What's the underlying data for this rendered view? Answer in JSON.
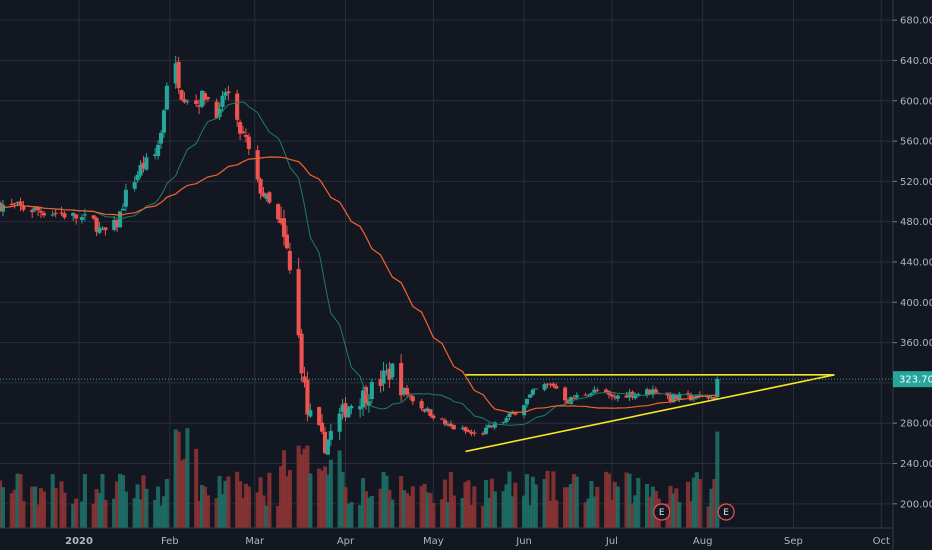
{
  "chart_data": {
    "type": "candlestick",
    "title": "",
    "xlabel": "",
    "ylabel": "",
    "x_range": [
      "2019-12-05",
      "2020-10-05"
    ],
    "ylim": [
      176,
      700
    ],
    "y_ticks": [
      "200.00",
      "240.00",
      "280.00",
      "320.00",
      "360.00",
      "400.00",
      "440.00",
      "480.00",
      "520.00",
      "560.00",
      "600.00",
      "640.00",
      "680.00"
    ],
    "x_ticks": [
      {
        "label": "2020",
        "date": "2020-01-01",
        "bold": true
      },
      {
        "label": "Feb",
        "date": "2020-02-01"
      },
      {
        "label": "Mar",
        "date": "2020-03-01"
      },
      {
        "label": "Apr",
        "date": "2020-04-01"
      },
      {
        "label": "May",
        "date": "2020-05-01"
      },
      {
        "label": "Jun",
        "date": "2020-06-01"
      },
      {
        "label": "Jul",
        "date": "2020-07-01"
      },
      {
        "label": "Aug",
        "date": "2020-08-01"
      },
      {
        "label": "Sep",
        "date": "2020-09-01"
      },
      {
        "label": "Oct",
        "date": "2020-10-01"
      }
    ],
    "last_price": "323.70",
    "last_price_value": 323.7,
    "grid": true,
    "colors": {
      "background": "#131722",
      "grid": "#2a2e39",
      "up": "#26a69a",
      "down": "#ef5350",
      "volume_up": "#1f6f66",
      "volume_down": "#8c3434",
      "ma_short": "#1e7f63",
      "ma_long": "#f4622f",
      "trendline": "#f5e625",
      "price_label": "#26a69a",
      "earnings_marker": "#ef5350"
    },
    "series": [
      {
        "kind": "ohlc",
        "anchors": [
          [
            "2019-12-05",
            497
          ],
          [
            "2019-12-16",
            492
          ],
          [
            "2019-12-26",
            488
          ],
          [
            "2020-01-06",
            480
          ],
          [
            "2020-01-09",
            468
          ],
          [
            "2020-01-14",
            478
          ],
          [
            "2020-01-17",
            507
          ],
          [
            "2020-01-22",
            533
          ],
          [
            "2020-01-27",
            546
          ],
          [
            "2020-01-29",
            568
          ],
          [
            "2020-01-31",
            619
          ],
          [
            "2020-02-03",
            632
          ],
          [
            "2020-02-05",
            608
          ],
          [
            "2020-02-10",
            598
          ],
          [
            "2020-02-13",
            606
          ],
          [
            "2020-02-18",
            586
          ],
          [
            "2020-02-20",
            610
          ],
          [
            "2020-02-21",
            605
          ],
          [
            "2020-02-24",
            574
          ],
          [
            "2020-02-27",
            560
          ],
          [
            "2020-03-02",
            517
          ],
          [
            "2020-03-05",
            502
          ],
          [
            "2020-03-09",
            480
          ],
          [
            "2020-03-12",
            448
          ],
          [
            "2020-03-15",
            390
          ],
          [
            "2020-03-17",
            339
          ],
          [
            "2020-03-19",
            290
          ],
          [
            "2020-03-21",
            283
          ],
          [
            "2020-03-25",
            258
          ],
          [
            "2020-03-29",
            282
          ],
          [
            "2020-04-02",
            298
          ],
          [
            "2020-04-09",
            311
          ],
          [
            "2020-04-13",
            322
          ],
          [
            "2020-04-17",
            333
          ],
          [
            "2020-04-21",
            312
          ],
          [
            "2020-04-26",
            298
          ],
          [
            "2020-05-01",
            288
          ],
          [
            "2020-05-06",
            277
          ],
          [
            "2020-05-11",
            273
          ],
          [
            "2020-05-16",
            267
          ],
          [
            "2020-05-21",
            277
          ],
          [
            "2020-05-26",
            284
          ],
          [
            "2020-06-01",
            300
          ],
          [
            "2020-06-06",
            316
          ],
          [
            "2020-06-11",
            318
          ],
          [
            "2020-06-16",
            302
          ],
          [
            "2020-06-21",
            309
          ],
          [
            "2020-06-26",
            312
          ],
          [
            "2020-07-01",
            305
          ],
          [
            "2020-07-06",
            309
          ],
          [
            "2020-07-11",
            310
          ],
          [
            "2020-07-16",
            313
          ],
          [
            "2020-07-21",
            305
          ],
          [
            "2020-07-26",
            306
          ],
          [
            "2020-07-31",
            305
          ],
          [
            "2020-08-05",
            306
          ],
          [
            "2020-08-06",
            324
          ]
        ]
      },
      {
        "kind": "sma",
        "name": "",
        "period": 20
      },
      {
        "kind": "sma",
        "name": "",
        "period": 50
      },
      {
        "kind": "volume"
      }
    ],
    "trendlines": [
      {
        "name": "resistance",
        "points": [
          [
            "2020-05-12",
            328
          ],
          [
            "2020-09-15",
            328
          ]
        ]
      },
      {
        "name": "support",
        "points": [
          [
            "2020-05-12",
            252
          ],
          [
            "2020-09-15",
            328
          ]
        ]
      }
    ],
    "horizontal_line": {
      "value": 323.7,
      "style": "dotted"
    },
    "markers": [
      {
        "label": "E",
        "date": "2020-07-18",
        "type": "earnings"
      },
      {
        "label": "E",
        "date": "2020-08-09",
        "type": "earnings"
      }
    ]
  }
}
